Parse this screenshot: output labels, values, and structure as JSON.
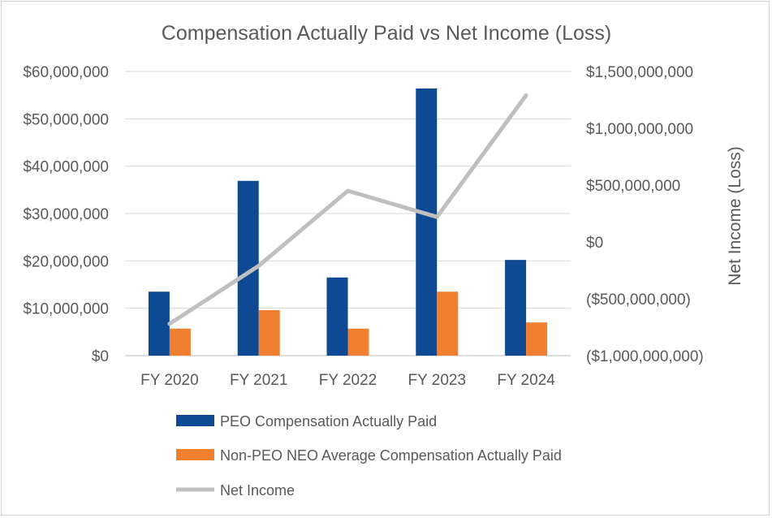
{
  "chart_data": {
    "type": "bar",
    "title": "Compensation Actually Paid vs Net Income (Loss)",
    "xlabel": "",
    "ylabel": "",
    "y2label": "Net Income (Loss)",
    "categories": [
      "FY 2020",
      "FY 2021",
      "FY 2022",
      "FY 2023",
      "FY 2024"
    ],
    "ylim": [
      0,
      60000000
    ],
    "y2lim": [
      -1000000000,
      1500000000
    ],
    "yticks": [
      0,
      10000000,
      20000000,
      30000000,
      40000000,
      50000000,
      60000000
    ],
    "ytick_labels": [
      "$0",
      "$10,000,000",
      "$20,000,000",
      "$30,000,000",
      "$40,000,000",
      "$50,000,000",
      "$60,000,000"
    ],
    "y2ticks": [
      -1000000000,
      -500000000,
      0,
      500000000,
      1000000000,
      1500000000
    ],
    "y2tick_labels": [
      "($1,000,000,000)",
      "($500,000,000)",
      "$0",
      "$500,000,000",
      "$1,000,000,000",
      "$1,500,000,000"
    ],
    "grid": true,
    "legend_position": "bottom",
    "series": [
      {
        "name": "PEO Compensation Actually Paid",
        "type": "bar",
        "axis": "left",
        "color": "#0E4A94",
        "values": [
          13500000,
          36900000,
          16500000,
          56400000,
          20200000
        ]
      },
      {
        "name": "Non-PEO NEO Average Compensation Actually Paid",
        "type": "bar",
        "axis": "left",
        "color": "#F07F30",
        "values": [
          5700000,
          9600000,
          5700000,
          13500000,
          7000000
        ]
      },
      {
        "name": "Net Income",
        "type": "line",
        "axis": "right",
        "color": "#BFBFBF",
        "values": [
          -720000000,
          -210000000,
          450000000,
          220000000,
          1290000000
        ]
      }
    ]
  }
}
